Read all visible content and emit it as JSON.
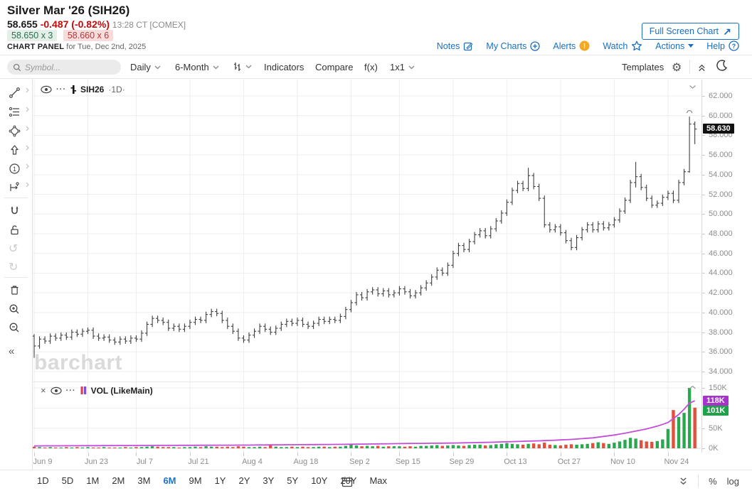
{
  "header": {
    "title": "Silver Mar '26 (SIH26)",
    "last": "58.655",
    "change": "-0.487 (-0.82%)",
    "session": "13:28 CT [COMEX]",
    "bid": "58.650 x 3",
    "ask": "58.660 x 6",
    "panel_label": "CHART PANEL",
    "panel_date": "for Tue, Dec 2nd, 2025",
    "full_screen_label": "Full Screen Chart",
    "links": {
      "notes": "Notes",
      "my_charts": "My Charts",
      "alerts": "Alerts",
      "watch": "Watch",
      "actions": "Actions",
      "help": "Help"
    }
  },
  "toolbar": {
    "symbol_placeholder": "Symbol...",
    "period_label": "Daily",
    "range_label": "6-Month",
    "indicators_label": "Indicators",
    "compare_label": "Compare",
    "fx_label": "f(x)",
    "grid_label": "1x1",
    "templates_label": "Templates"
  },
  "main_overlay": {
    "symbol": "SIH26",
    "interval": "·1D·",
    "dots": "···"
  },
  "volume_overlay": {
    "close": "×",
    "label": "VOL (LikeMain)",
    "dots": "···"
  },
  "watermark": "barchart",
  "price_chip": "58.630",
  "volume_chips": {
    "ma": "118K",
    "vol": "101K"
  },
  "bottom": {
    "percent": "%",
    "log": "log"
  },
  "range_buttons": [
    "1D",
    "5D",
    "1M",
    "2M",
    "3M",
    "6M",
    "9M",
    "1Y",
    "2Y",
    "3Y",
    "5Y",
    "10Y",
    "20Y",
    "Max"
  ],
  "active_range": "6M",
  "colors": {
    "up": "#2aa850",
    "down": "#e2503c",
    "bar": "#404040",
    "ma_line": "#c44ed8",
    "ma_chip_bg": "#a832cb",
    "vol_chip_bg": "#1fa34a",
    "price_chip_bg": "#121212",
    "accent_blue": "#1b6ec2",
    "change_red": "#c40b0b",
    "grid": "#ededed",
    "axis_text": "#8c8c8c"
  },
  "chart_data": {
    "type": "ohlc",
    "symbol": "SIH26",
    "interval": "1D",
    "last_price": 58.63,
    "price_axis": {
      "min": 33.0,
      "max": 63.7,
      "tick_step": 2,
      "tick_labels": [
        "62.000",
        "60.000",
        "58.000",
        "56.000",
        "54.000",
        "52.000",
        "50.000",
        "48.000",
        "46.000",
        "44.000",
        "42.000",
        "40.000",
        "38.000",
        "36.000",
        "34.000"
      ],
      "tick_values": [
        62,
        60,
        58,
        56,
        54,
        52,
        50,
        48,
        46,
        44,
        42,
        40,
        38,
        36,
        34
      ]
    },
    "volume_axis": {
      "max_k": 150,
      "tick_labels": [
        "150K",
        "50K",
        "0K"
      ],
      "tick_values": [
        150,
        50,
        0
      ],
      "grid_values": [
        50,
        100,
        150
      ]
    },
    "x_ticks": [
      {
        "label": "Jun 9",
        "index": 0
      },
      {
        "label": "Jun 23",
        "index": 10
      },
      {
        "label": "Jul 7",
        "index": 19
      },
      {
        "label": "Jul 21",
        "index": 29
      },
      {
        "label": "Aug 4",
        "index": 39
      },
      {
        "label": "Aug 18",
        "index": 49
      },
      {
        "label": "Sep 2",
        "index": 59
      },
      {
        "label": "Sep 15",
        "index": 68
      },
      {
        "label": "Sep 29",
        "index": 78
      },
      {
        "label": "Oct 13",
        "index": 88
      },
      {
        "label": "Oct 27",
        "index": 98
      },
      {
        "label": "Nov 10",
        "index": 108
      },
      {
        "label": "Nov 24",
        "index": 118
      }
    ],
    "open_rule": "prev_close",
    "wick": 0.28,
    "closes": [
      36.6,
      37.3,
      37.1,
      37.6,
      37.4,
      37.7,
      37.5,
      38.0,
      37.8,
      38.1,
      38.2,
      37.6,
      37.4,
      37.5,
      37.2,
      37.0,
      37.3,
      37.1,
      37.4,
      37.3,
      37.9,
      38.8,
      39.4,
      39.2,
      39.0,
      38.4,
      38.6,
      38.3,
      38.6,
      39.0,
      39.3,
      39.2,
      39.8,
      40.1,
      39.9,
      39.2,
      38.6,
      38.1,
      37.4,
      37.2,
      37.7,
      38.1,
      38.6,
      38.3,
      38.0,
      38.4,
      38.8,
      39.1,
      38.9,
      39.2,
      38.8,
      38.6,
      38.9,
      39.3,
      39.1,
      39.3,
      39.2,
      39.6,
      40.3,
      41.0,
      41.8,
      41.5,
      42.1,
      42.3,
      41.9,
      42.2,
      41.8,
      42.0,
      42.4,
      42.1,
      41.7,
      42.0,
      42.5,
      43.0,
      43.6,
      44.3,
      44.0,
      44.8,
      46.0,
      46.8,
      46.4,
      47.2,
      47.9,
      48.3,
      47.8,
      48.5,
      49.3,
      50.1,
      51.2,
      52.4,
      53.1,
      52.6,
      53.9,
      52.8,
      51.6,
      48.9,
      48.4,
      48.7,
      48.1,
      47.3,
      46.6,
      47.6,
      48.4,
      48.9,
      48.4,
      49.0,
      48.6,
      48.9,
      49.4,
      50.3,
      51.4,
      53.2,
      53.8,
      52.7,
      51.6,
      50.9,
      51.1,
      51.7,
      52.1,
      51.4,
      53.2,
      54.3,
      59.14,
      58.63
    ],
    "volumes_k": [
      4,
      3,
      2,
      3,
      2,
      2,
      3,
      2,
      3,
      2,
      3,
      2,
      2,
      3,
      2,
      2,
      2,
      3,
      2,
      3,
      3,
      4,
      5,
      4,
      3,
      3,
      3,
      2,
      3,
      3,
      4,
      3,
      5,
      4,
      4,
      3,
      4,
      3,
      5,
      4,
      3,
      3,
      4,
      3,
      8,
      4,
      3,
      3,
      4,
      3,
      4,
      3,
      3,
      4,
      4,
      3,
      4,
      4,
      6,
      9,
      7,
      5,
      6,
      5,
      6,
      4,
      5,
      5,
      5,
      4,
      5,
      4,
      6,
      6,
      7,
      8,
      6,
      7,
      8,
      7,
      6,
      8,
      9,
      9,
      7,
      8,
      10,
      11,
      13,
      11,
      10,
      9,
      11,
      12,
      10,
      14,
      9,
      8,
      7,
      9,
      10,
      9,
      10,
      11,
      13,
      15,
      13,
      11,
      14,
      17,
      21,
      26,
      24,
      20,
      17,
      16,
      18,
      22,
      48,
      95,
      78,
      88,
      150,
      101
    ],
    "special_bars": {
      "0": {
        "o": 37.6,
        "h": 37.8,
        "l": 35.4
      },
      "92": {
        "h": 54.7
      },
      "112": {
        "h": 55.3,
        "l": 52.7
      },
      "122": {
        "h": 59.9,
        "l": 54.2
      },
      "123": {
        "h": 59.4,
        "l": 57.1
      }
    },
    "ma_points_k": [
      [
        0,
        6
      ],
      [
        20,
        7
      ],
      [
        40,
        8
      ],
      [
        59,
        10
      ],
      [
        70,
        12
      ],
      [
        78,
        13
      ],
      [
        85,
        15
      ],
      [
        90,
        17
      ],
      [
        95,
        19
      ],
      [
        100,
        22
      ],
      [
        104,
        26
      ],
      [
        108,
        33
      ],
      [
        111,
        40
      ],
      [
        114,
        48
      ],
      [
        116,
        55
      ],
      [
        118,
        64
      ],
      [
        120,
        84
      ],
      [
        121,
        97
      ],
      [
        122,
        112
      ],
      [
        123,
        118
      ]
    ],
    "high_marker_index": 122
  }
}
